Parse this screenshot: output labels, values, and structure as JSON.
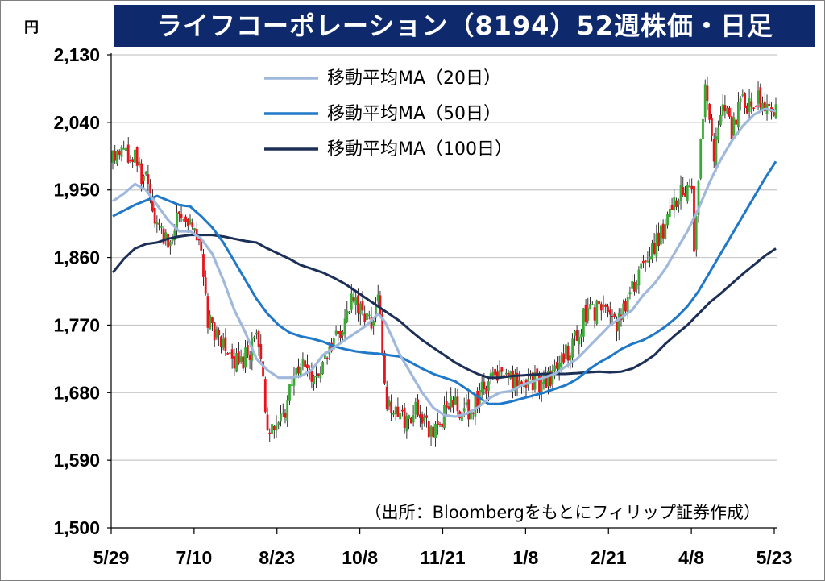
{
  "title": "ライフコーポレーション（8194）52週株価・日足",
  "y_unit": "円",
  "source_note": "（出所：Bloombergをもとにフィリップ証券作成）",
  "colors": {
    "title_bg": "#0f2a6c",
    "up": "#3aaa35",
    "down": "#e8141c",
    "ma20": "#9fb8dc",
    "ma50": "#1f78c8",
    "ma100": "#1b2f57",
    "grid": "#c8c8c8"
  },
  "chart_data": {
    "type": "candlestick",
    "ylim": [
      1500,
      2130
    ],
    "yticks": [
      1500,
      1590,
      1680,
      1770,
      1860,
      1950,
      2040,
      2130
    ],
    "ytick_labels": [
      "1,500",
      "1,590",
      "1,680",
      "1,770",
      "1,860",
      "1,950",
      "2,040",
      "2,130"
    ],
    "xtick_labels": [
      "5/29",
      "7/10",
      "8/23",
      "10/8",
      "11/21",
      "1/8",
      "2/21",
      "4/8",
      "5/23"
    ],
    "legend": [
      "移動平均MA（20日）",
      "移動平均MA（50日）",
      "移動平均MA（100日）"
    ],
    "legend_placement": "top-center",
    "grid": true,
    "anchors": [
      [
        0,
        1990
      ],
      [
        5,
        2000
      ],
      [
        10,
        1990
      ],
      [
        15,
        1960
      ],
      [
        20,
        1900
      ],
      [
        25,
        1880
      ],
      [
        30,
        1920
      ],
      [
        35,
        1905
      ],
      [
        40,
        1870
      ],
      [
        43,
        1780
      ],
      [
        48,
        1750
      ],
      [
        53,
        1730
      ],
      [
        58,
        1720
      ],
      [
        62,
        1735
      ],
      [
        65,
        1760
      ],
      [
        70,
        1640
      ],
      [
        73,
        1620
      ],
      [
        78,
        1660
      ],
      [
        85,
        1720
      ],
      [
        88,
        1710
      ],
      [
        93,
        1700
      ],
      [
        98,
        1740
      ],
      [
        103,
        1760
      ],
      [
        108,
        1800
      ],
      [
        113,
        1790
      ],
      [
        117,
        1770
      ],
      [
        120,
        1810
      ],
      [
        124,
        1660
      ],
      [
        128,
        1650
      ],
      [
        133,
        1640
      ],
      [
        138,
        1660
      ],
      [
        143,
        1630
      ],
      [
        148,
        1640
      ],
      [
        153,
        1670
      ],
      [
        158,
        1650
      ],
      [
        163,
        1660
      ],
      [
        168,
        1690
      ],
      [
        173,
        1700
      ],
      [
        178,
        1700
      ],
      [
        183,
        1690
      ],
      [
        188,
        1700
      ],
      [
        193,
        1690
      ],
      [
        198,
        1700
      ],
      [
        203,
        1730
      ],
      [
        208,
        1740
      ],
      [
        213,
        1780
      ],
      [
        218,
        1790
      ],
      [
        223,
        1800
      ],
      [
        228,
        1770
      ],
      [
        233,
        1810
      ],
      [
        238,
        1840
      ],
      [
        243,
        1870
      ],
      [
        248,
        1890
      ],
      [
        253,
        1930
      ],
      [
        258,
        1950
      ],
      [
        262,
        1950
      ],
      [
        263,
        1880
      ],
      [
        266,
        2020
      ],
      [
        268,
        2090
      ],
      [
        272,
        2000
      ],
      [
        276,
        2060
      ],
      [
        280,
        2030
      ],
      [
        284,
        2070
      ],
      [
        288,
        2060
      ],
      [
        292,
        2080
      ],
      [
        295,
        2050
      ],
      [
        298,
        2060
      ]
    ],
    "ma20": [
      [
        0,
        1935
      ],
      [
        5,
        1945
      ],
      [
        10,
        1958
      ],
      [
        15,
        1950
      ],
      [
        20,
        1930
      ],
      [
        25,
        1910
      ],
      [
        30,
        1895
      ],
      [
        35,
        1895
      ],
      [
        40,
        1885
      ],
      [
        45,
        1865
      ],
      [
        50,
        1830
      ],
      [
        55,
        1790
      ],
      [
        60,
        1760
      ],
      [
        65,
        1725
      ],
      [
        70,
        1710
      ],
      [
        75,
        1700
      ],
      [
        80,
        1700
      ],
      [
        85,
        1702
      ],
      [
        90,
        1710
      ],
      [
        95,
        1730
      ],
      [
        100,
        1740
      ],
      [
        105,
        1750
      ],
      [
        110,
        1760
      ],
      [
        115,
        1770
      ],
      [
        120,
        1785
      ],
      [
        123,
        1775
      ],
      [
        127,
        1750
      ],
      [
        130,
        1730
      ],
      [
        135,
        1705
      ],
      [
        140,
        1680
      ],
      [
        145,
        1660
      ],
      [
        150,
        1650
      ],
      [
        155,
        1648
      ],
      [
        160,
        1652
      ],
      [
        165,
        1660
      ],
      [
        170,
        1672
      ],
      [
        175,
        1680
      ],
      [
        180,
        1682
      ],
      [
        185,
        1690
      ],
      [
        190,
        1695
      ],
      [
        195,
        1700
      ],
      [
        200,
        1705
      ],
      [
        205,
        1715
      ],
      [
        210,
        1725
      ],
      [
        215,
        1740
      ],
      [
        220,
        1755
      ],
      [
        225,
        1770
      ],
      [
        230,
        1780
      ],
      [
        235,
        1790
      ],
      [
        240,
        1810
      ],
      [
        245,
        1825
      ],
      [
        250,
        1845
      ],
      [
        255,
        1870
      ],
      [
        260,
        1895
      ],
      [
        265,
        1925
      ],
      [
        270,
        1960
      ],
      [
        275,
        1990
      ],
      [
        280,
        2015
      ],
      [
        285,
        2035
      ],
      [
        290,
        2050
      ],
      [
        295,
        2058
      ],
      [
        300,
        2055
      ]
    ],
    "ma50": [
      [
        0,
        1915
      ],
      [
        10,
        1930
      ],
      [
        20,
        1942
      ],
      [
        30,
        1930
      ],
      [
        35,
        1928
      ],
      [
        40,
        1915
      ],
      [
        45,
        1900
      ],
      [
        50,
        1880
      ],
      [
        55,
        1855
      ],
      [
        60,
        1830
      ],
      [
        65,
        1805
      ],
      [
        70,
        1785
      ],
      [
        75,
        1770
      ],
      [
        80,
        1760
      ],
      [
        85,
        1755
      ],
      [
        90,
        1752
      ],
      [
        95,
        1748
      ],
      [
        100,
        1742
      ],
      [
        105,
        1738
      ],
      [
        110,
        1735
      ],
      [
        115,
        1733
      ],
      [
        120,
        1732
      ],
      [
        125,
        1730
      ],
      [
        130,
        1728
      ],
      [
        135,
        1720
      ],
      [
        140,
        1712
      ],
      [
        145,
        1705
      ],
      [
        150,
        1700
      ],
      [
        155,
        1695
      ],
      [
        160,
        1685
      ],
      [
        165,
        1675
      ],
      [
        170,
        1665
      ],
      [
        175,
        1665
      ],
      [
        180,
        1668
      ],
      [
        185,
        1672
      ],
      [
        190,
        1676
      ],
      [
        195,
        1680
      ],
      [
        200,
        1685
      ],
      [
        205,
        1690
      ],
      [
        210,
        1698
      ],
      [
        215,
        1710
      ],
      [
        220,
        1720
      ],
      [
        225,
        1728
      ],
      [
        230,
        1738
      ],
      [
        235,
        1745
      ],
      [
        240,
        1750
      ],
      [
        245,
        1758
      ],
      [
        250,
        1768
      ],
      [
        255,
        1780
      ],
      [
        260,
        1795
      ],
      [
        265,
        1815
      ],
      [
        270,
        1840
      ],
      [
        275,
        1865
      ],
      [
        280,
        1890
      ],
      [
        285,
        1915
      ],
      [
        290,
        1940
      ],
      [
        295,
        1965
      ],
      [
        300,
        1988
      ]
    ],
    "ma100": [
      [
        0,
        1840
      ],
      [
        5,
        1858
      ],
      [
        10,
        1872
      ],
      [
        15,
        1878
      ],
      [
        20,
        1880
      ],
      [
        25,
        1885
      ],
      [
        30,
        1888
      ],
      [
        35,
        1890
      ],
      [
        40,
        1890
      ],
      [
        45,
        1890
      ],
      [
        50,
        1888
      ],
      [
        55,
        1885
      ],
      [
        60,
        1882
      ],
      [
        65,
        1880
      ],
      [
        70,
        1872
      ],
      [
        75,
        1865
      ],
      [
        80,
        1858
      ],
      [
        85,
        1850
      ],
      [
        90,
        1845
      ],
      [
        95,
        1840
      ],
      [
        100,
        1833
      ],
      [
        105,
        1825
      ],
      [
        110,
        1815
      ],
      [
        115,
        1805
      ],
      [
        120,
        1795
      ],
      [
        125,
        1785
      ],
      [
        130,
        1775
      ],
      [
        135,
        1762
      ],
      [
        140,
        1750
      ],
      [
        145,
        1740
      ],
      [
        150,
        1730
      ],
      [
        155,
        1720
      ],
      [
        160,
        1712
      ],
      [
        165,
        1705
      ],
      [
        170,
        1700
      ],
      [
        175,
        1700
      ],
      [
        180,
        1702
      ],
      [
        185,
        1703
      ],
      [
        190,
        1704
      ],
      [
        195,
        1705
      ],
      [
        200,
        1705
      ],
      [
        205,
        1705
      ],
      [
        210,
        1706
      ],
      [
        215,
        1707
      ],
      [
        220,
        1708
      ],
      [
        225,
        1707
      ],
      [
        230,
        1708
      ],
      [
        235,
        1712
      ],
      [
        240,
        1720
      ],
      [
        245,
        1730
      ],
      [
        250,
        1745
      ],
      [
        255,
        1758
      ],
      [
        260,
        1770
      ],
      [
        265,
        1785
      ],
      [
        270,
        1800
      ],
      [
        275,
        1812
      ],
      [
        280,
        1825
      ],
      [
        285,
        1838
      ],
      [
        290,
        1850
      ],
      [
        295,
        1862
      ],
      [
        300,
        1872
      ]
    ]
  }
}
